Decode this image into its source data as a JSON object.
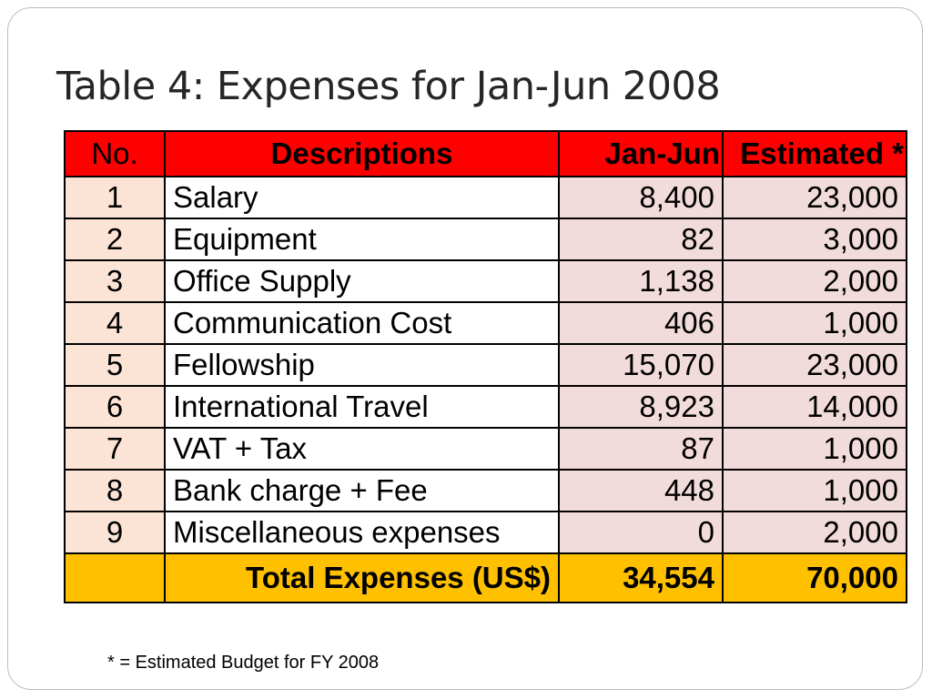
{
  "title": "Table 4: Expenses for Jan-Jun 2008",
  "table": {
    "headers": {
      "no": "No.",
      "desc": "Descriptions",
      "jan_jun": "Jan-Jun",
      "estimated": "Estimated *"
    },
    "rows": [
      {
        "no": "1",
        "desc": "Salary",
        "jan_jun": "8,400",
        "estimated": "23,000"
      },
      {
        "no": "2",
        "desc": "Equipment",
        "jan_jun": "82",
        "estimated": "3,000"
      },
      {
        "no": "3",
        "desc": "Office Supply",
        "jan_jun": "1,138",
        "estimated": "2,000"
      },
      {
        "no": "4",
        "desc": "Communication Cost",
        "jan_jun": "406",
        "estimated": "1,000"
      },
      {
        "no": "5",
        "desc": "Fellowship",
        "jan_jun": "15,070",
        "estimated": "23,000"
      },
      {
        "no": "6",
        "desc": "International Travel",
        "jan_jun": "8,923",
        "estimated": "14,000"
      },
      {
        "no": "7",
        "desc": "VAT + Tax",
        "jan_jun": "87",
        "estimated": "1,000"
      },
      {
        "no": "8",
        "desc": "Bank charge + Fee",
        "jan_jun": "448",
        "estimated": "1,000"
      },
      {
        "no": "9",
        "desc": "Miscellaneous expenses",
        "jan_jun": "0",
        "estimated": "2,000"
      }
    ],
    "total": {
      "label": "Total Expenses (US$)",
      "jan_jun": "34,554",
      "estimated": "70,000"
    }
  },
  "footnote": "* = Estimated Budget for FY 2008",
  "colors": {
    "header": "#ff0000",
    "total": "#ffc000",
    "number_cells": "#f2dcdb",
    "index_cells": "#fbe4d6"
  }
}
